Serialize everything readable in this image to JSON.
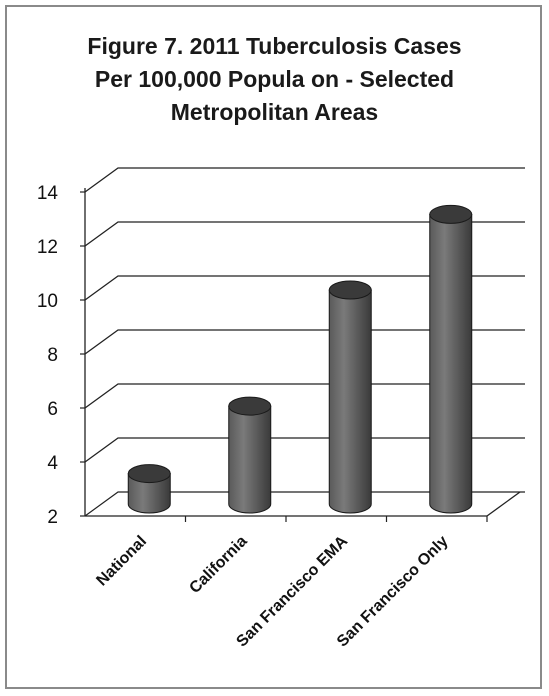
{
  "chart_data": {
    "type": "bar",
    "title_lines": [
      "Figure 7. 2011 Tuberculosis Cases",
      "Per 100,000 Popula   on - Selected",
      "Metropolitan Areas"
    ],
    "categories": [
      "National",
      "California",
      "San Francisco EMA",
      "San Francisco Only"
    ],
    "values": [
      3.2,
      5.7,
      10.0,
      12.8
    ],
    "ylim": [
      2,
      14
    ],
    "yticks": [
      "2",
      "4",
      "6",
      "8",
      "10",
      "12",
      "14"
    ],
    "grid": true,
    "legend": "none",
    "bar_color": "#4a4a4a"
  }
}
